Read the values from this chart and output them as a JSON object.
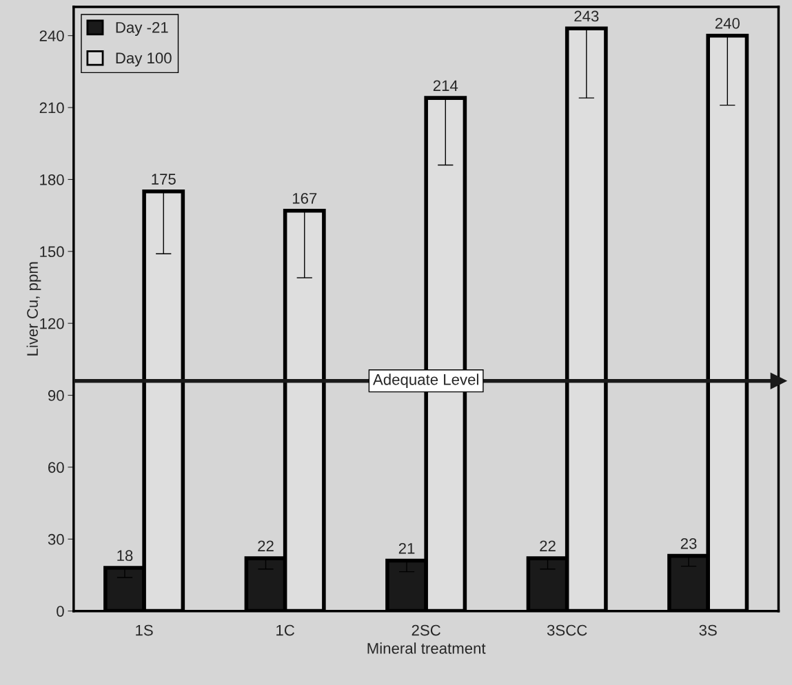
{
  "chart_data": {
    "type": "bar",
    "xlabel": "Mineral treatment",
    "ylabel": "Liver Cu, ppm",
    "categories": [
      "1S",
      "1C",
      "2SC",
      "3SCC",
      "3S"
    ],
    "series": [
      {
        "name": "Day -21",
        "color": "#1a1a1a",
        "values": [
          18,
          22,
          21,
          22,
          23
        ],
        "errors": [
          [
            14,
            18
          ],
          [
            17.5,
            22
          ],
          [
            16.4,
            21
          ],
          [
            17.5,
            22
          ],
          [
            18.7,
            23
          ]
        ]
      },
      {
        "name": "Day 100",
        "color": "#dedede",
        "values": [
          175,
          167,
          214,
          243,
          240
        ],
        "errors": [
          [
            149,
            175
          ],
          [
            139,
            167
          ],
          [
            186,
            214
          ],
          [
            214,
            243
          ],
          [
            211,
            240
          ]
        ]
      }
    ],
    "ylim": [
      0,
      252
    ],
    "yticks": [
      0,
      30,
      60,
      90,
      120,
      150,
      180,
      210,
      240
    ],
    "ref_lines": [
      {
        "axis": "y",
        "value": 96,
        "label": "Adequate Level",
        "color": "#1a1a1a"
      }
    ],
    "data_labels": true,
    "legend": "top left",
    "grid": false
  }
}
